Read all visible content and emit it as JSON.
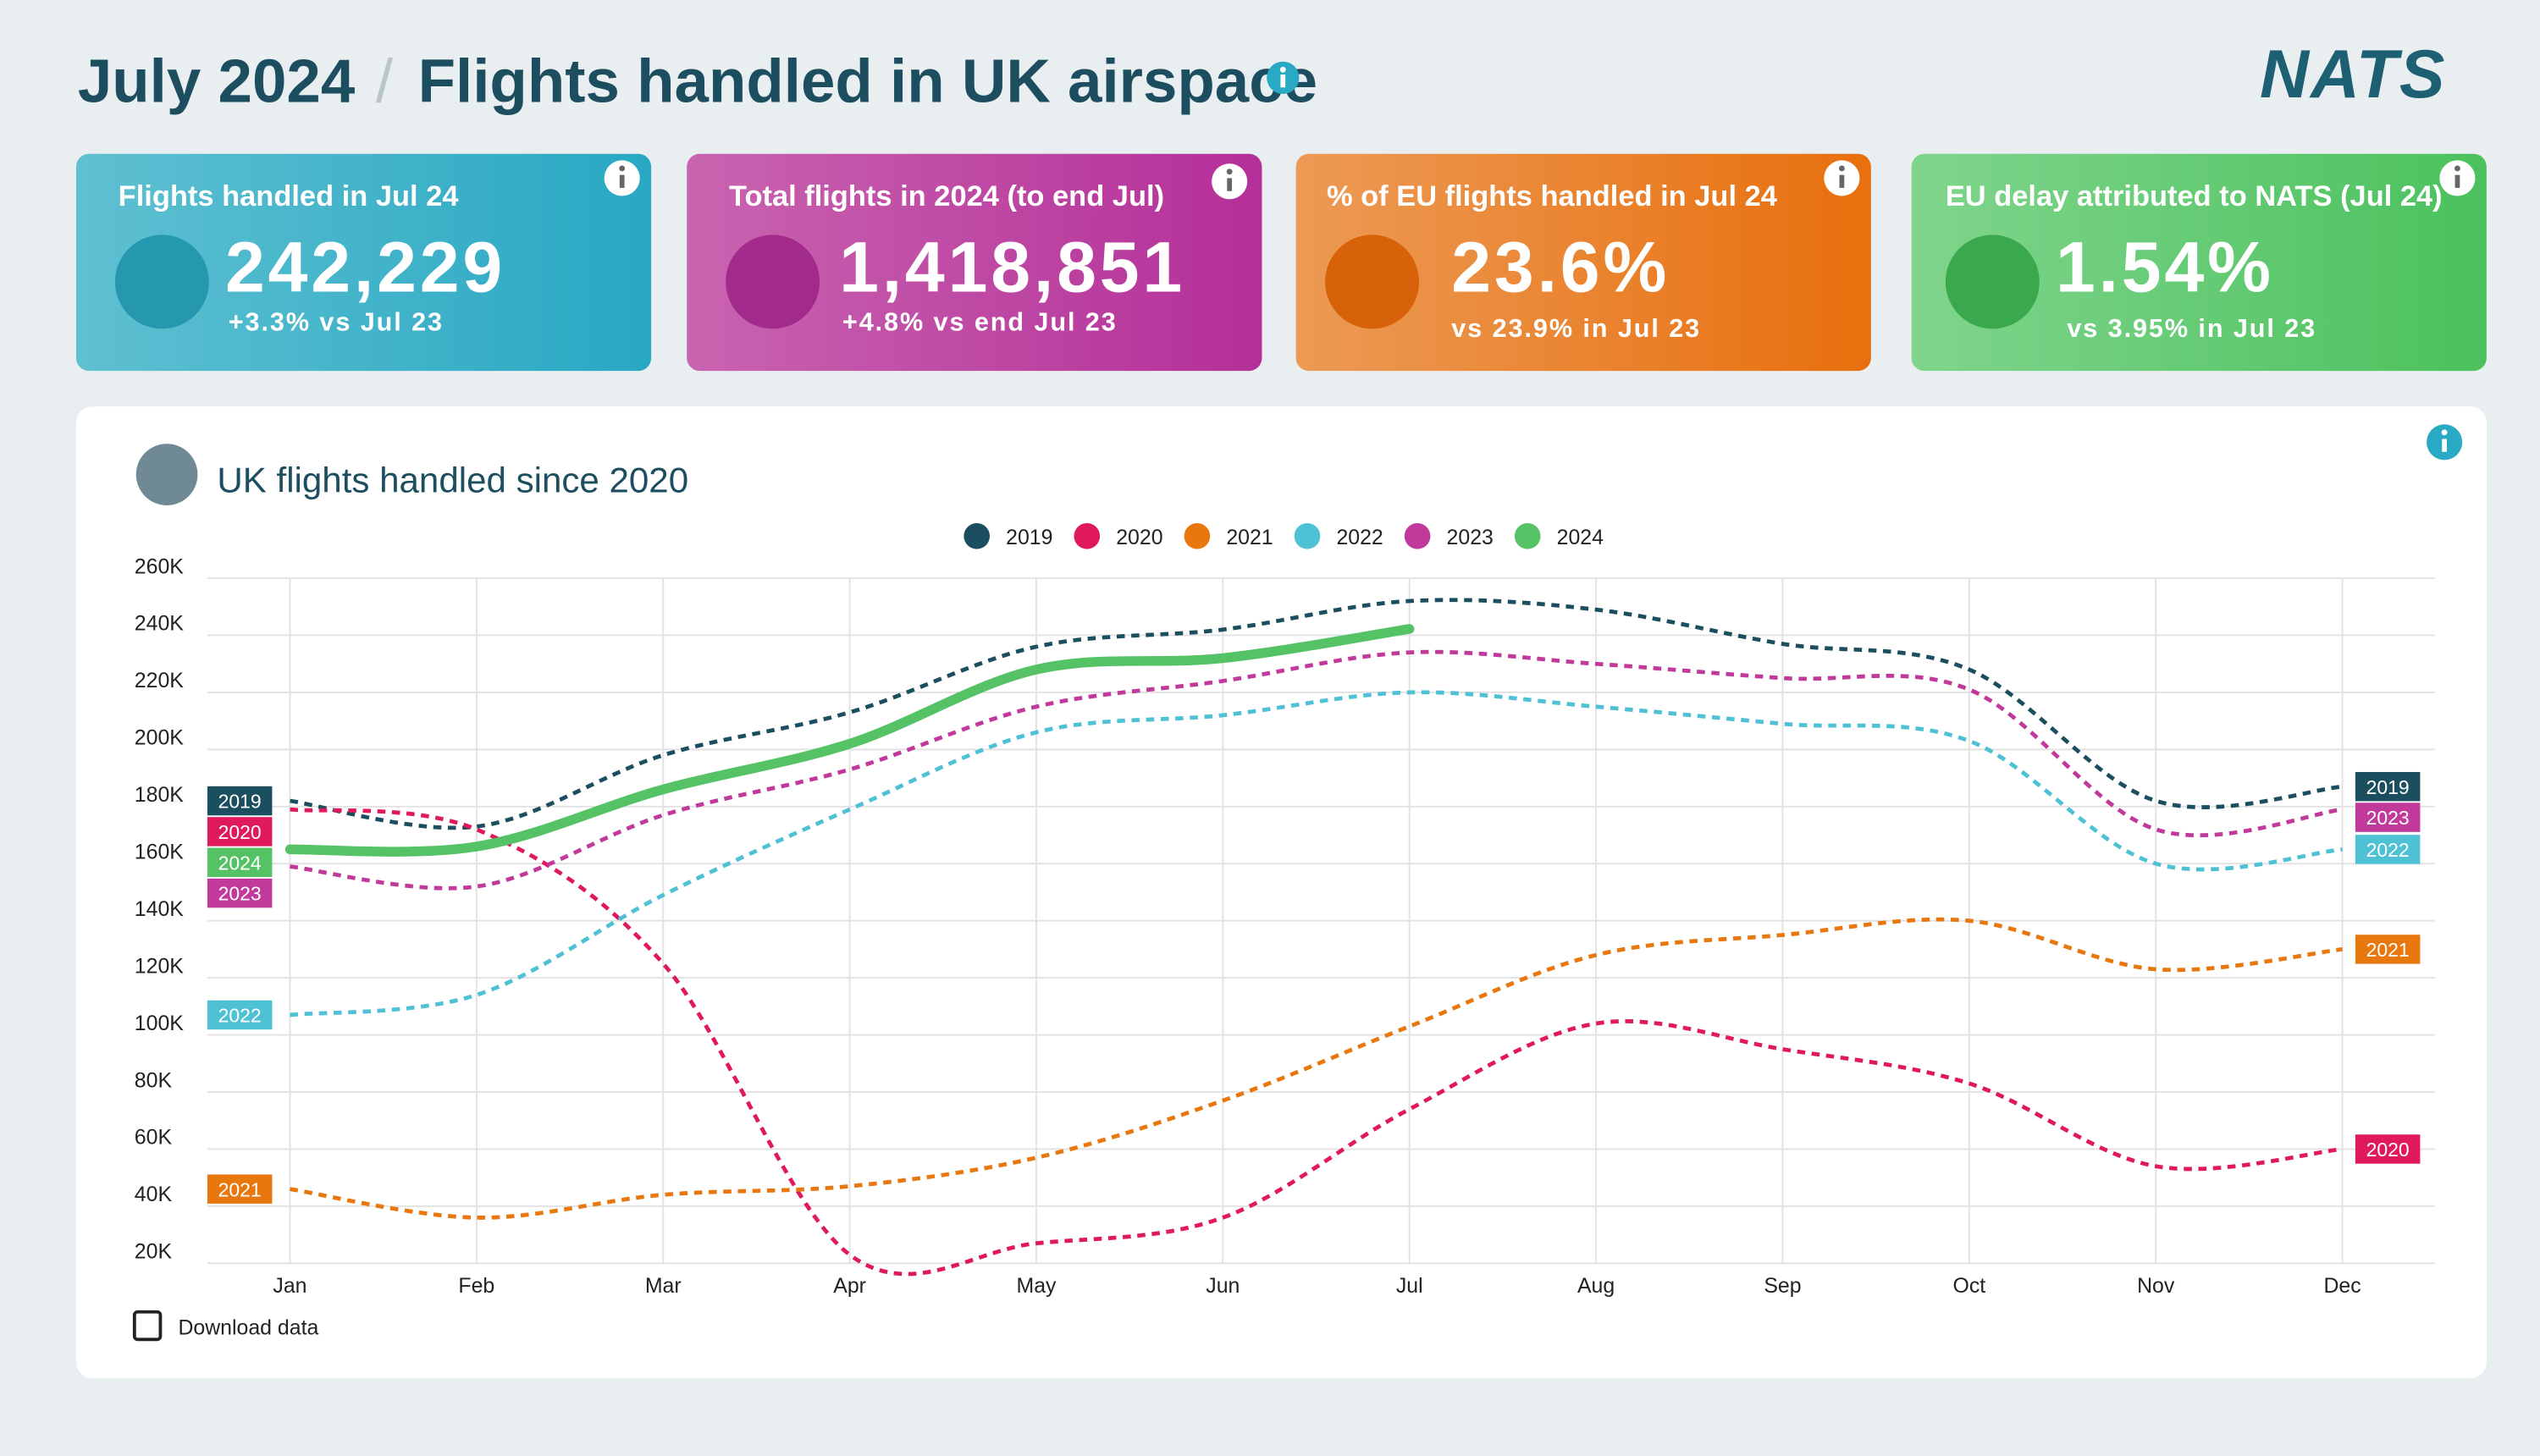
{
  "header": {
    "month": "July 2024",
    "separator": "/",
    "title": "Flights handled in UK airspace",
    "logo": "NATS"
  },
  "cards": [
    {
      "label": "Flights handled in Jul 24",
      "value": "242,229",
      "change": "+3.3% vs Jul 23"
    },
    {
      "label": "Total flights in 2024 (to end Jul)",
      "value": "1,418,851",
      "change": "+4.8% vs end Jul 23"
    },
    {
      "label": "% of EU flights handled in Jul 24",
      "value": "23.6%",
      "change": "vs 23.9% in Jul 23"
    },
    {
      "label": "EU delay attributed to NATS (Jul 24)",
      "value": "1.54%",
      "change": "vs 3.95% in Jul 23"
    }
  ],
  "download": "Download data",
  "chart_data": {
    "type": "line",
    "title": "UK flights handled since 2020",
    "categories": [
      "Jan",
      "Feb",
      "Mar",
      "Apr",
      "May",
      "Jun",
      "Jul",
      "Aug",
      "Sep",
      "Oct",
      "Nov",
      "Dec"
    ],
    "series": [
      {
        "name": "2019",
        "color": "#1b4e5e",
        "dashed": true,
        "values": [
          182000,
          173000,
          198000,
          213000,
          236000,
          242000,
          252000,
          249000,
          237000,
          228000,
          182000,
          187000
        ]
      },
      {
        "name": "2020",
        "color": "#e0195e",
        "dashed": true,
        "values": [
          179000,
          172000,
          125000,
          23000,
          27000,
          36000,
          74000,
          104000,
          95000,
          83000,
          54000,
          60000
        ]
      },
      {
        "name": "2021",
        "color": "#e8770e",
        "dashed": true,
        "values": [
          46000,
          36000,
          44000,
          47000,
          57000,
          77000,
          103000,
          128000,
          135000,
          140000,
          123000,
          130000
        ]
      },
      {
        "name": "2022",
        "color": "#4fc1d4",
        "dashed": true,
        "values": [
          107000,
          114000,
          149000,
          179000,
          206000,
          212000,
          220000,
          215000,
          209000,
          203000,
          160000,
          165000
        ]
      },
      {
        "name": "2023",
        "color": "#c0399b",
        "dashed": true,
        "values": [
          159000,
          152000,
          177000,
          193000,
          215000,
          224000,
          234000,
          230000,
          225000,
          221000,
          172000,
          179000
        ]
      },
      {
        "name": "2024",
        "color": "#55c265",
        "dashed": false,
        "values": [
          165000,
          166000,
          186000,
          202000,
          228000,
          232000,
          242229,
          null,
          null,
          null,
          null,
          null
        ]
      }
    ],
    "ylim": [
      20000,
      260000
    ],
    "yticks": [
      {
        "value": 20000,
        "label": "20K"
      },
      {
        "value": 40000,
        "label": "40K"
      },
      {
        "value": 60000,
        "label": "60K"
      },
      {
        "value": 80000,
        "label": "80K"
      },
      {
        "value": 100000,
        "label": "100K"
      },
      {
        "value": 120000,
        "label": "120K"
      },
      {
        "value": 140000,
        "label": "140K"
      },
      {
        "value": 160000,
        "label": "160K"
      },
      {
        "value": 180000,
        "label": "180K"
      },
      {
        "value": 200000,
        "label": "200K"
      },
      {
        "value": 220000,
        "label": "220K"
      },
      {
        "value": 240000,
        "label": "240K"
      },
      {
        "value": 260000,
        "label": "260K"
      }
    ],
    "grid": true,
    "legend": "top"
  }
}
